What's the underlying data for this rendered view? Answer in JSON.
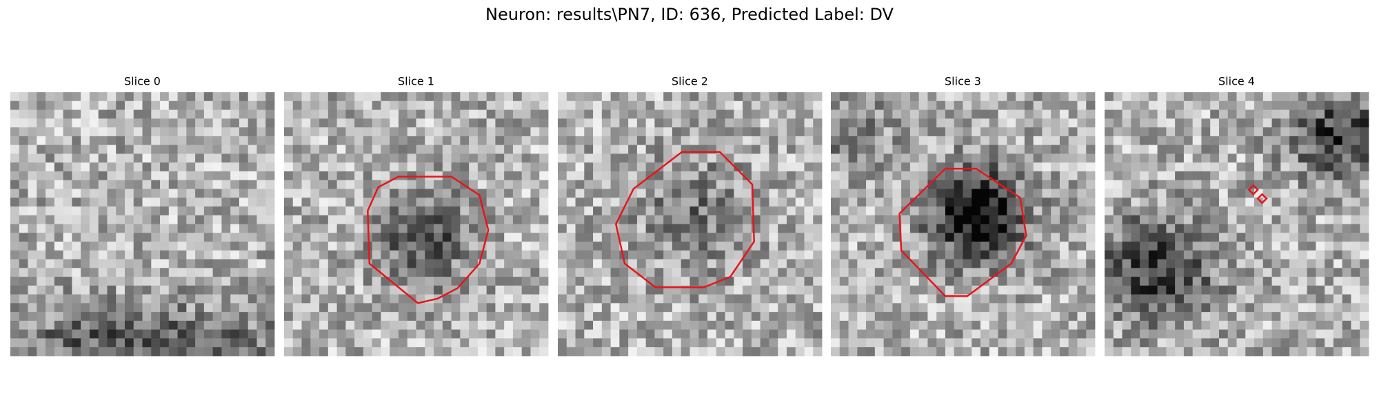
{
  "title": "Neuron: results\\PN7, ID: 636, Predicted Label: DV",
  "panels": [
    {
      "title": "Slice 0"
    },
    {
      "title": "Slice 1"
    },
    {
      "title": "Slice 2"
    },
    {
      "title": "Slice 3"
    },
    {
      "title": "Slice 4"
    }
  ]
}
